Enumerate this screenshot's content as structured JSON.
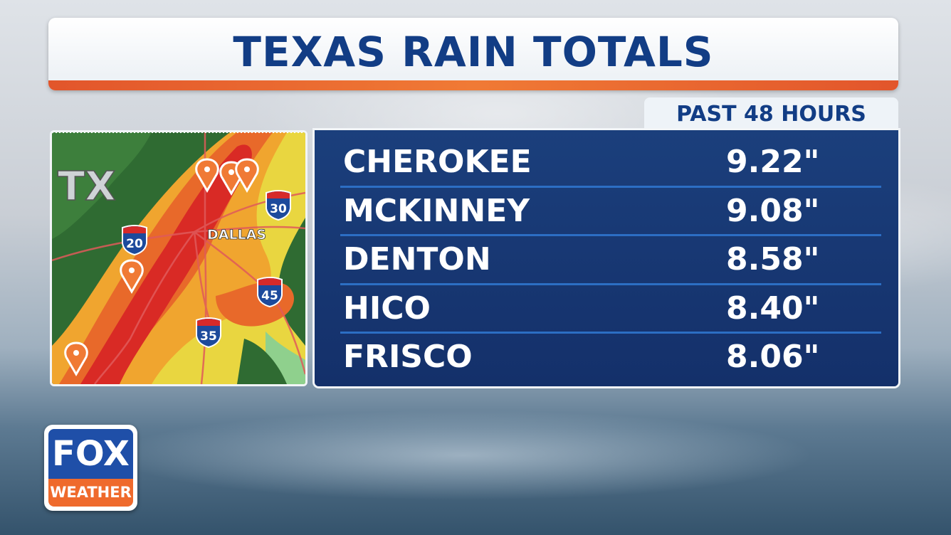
{
  "header": {
    "title": "TEXAS RAIN TOTALS",
    "subtitle": "PAST 48 HOURS"
  },
  "table": {
    "rows": [
      [
        "CHEROKEE",
        "9.22\""
      ],
      [
        "MCKINNEY",
        "9.08\""
      ],
      [
        "DENTON",
        "8.58\""
      ],
      [
        "HICO",
        "8.40\""
      ],
      [
        "FRISCO",
        "8.06\""
      ]
    ]
  },
  "map": {
    "state": "TX",
    "city": "DALLAS",
    "interstates": [
      "20",
      "30",
      "45",
      "35"
    ]
  },
  "logo": {
    "brand": "FOX",
    "product": "WEATHER"
  }
}
